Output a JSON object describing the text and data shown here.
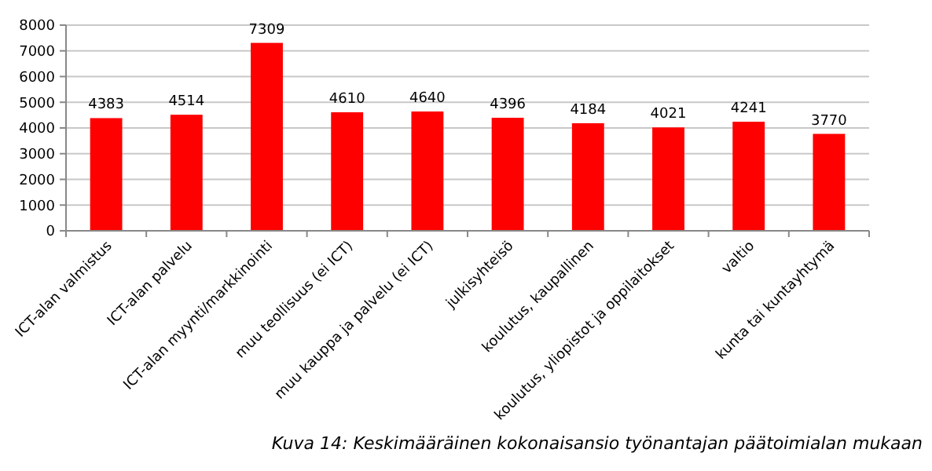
{
  "chart_data": {
    "type": "bar",
    "categories": [
      "ICT-alan valmistus",
      "ICT-alan palvelu",
      "ICT-alan myynti/markkinointi",
      "muu teollisuus (ei ICT)",
      "muu kauppa ja palvelu (ei ICT)",
      "julkisyhteisö",
      "koulutus, kaupallinen",
      "koulutus, yliopistot ja oppilaitokset",
      "valtio",
      "kunta tai kuntayhtymä"
    ],
    "values": [
      4383,
      4514,
      7309,
      4610,
      4640,
      4396,
      4184,
      4021,
      4241,
      3770
    ],
    "color": "#ff0000",
    "ylim": [
      0,
      8000
    ],
    "yticks": [
      0,
      1000,
      2000,
      3000,
      4000,
      5000,
      6000,
      7000,
      8000
    ],
    "grid": "y",
    "data_labels": true,
    "annotations": [
      "Kuva 14: Keskimääräinen kokonaisansio työnantajan päätoimialan mukaan"
    ]
  }
}
